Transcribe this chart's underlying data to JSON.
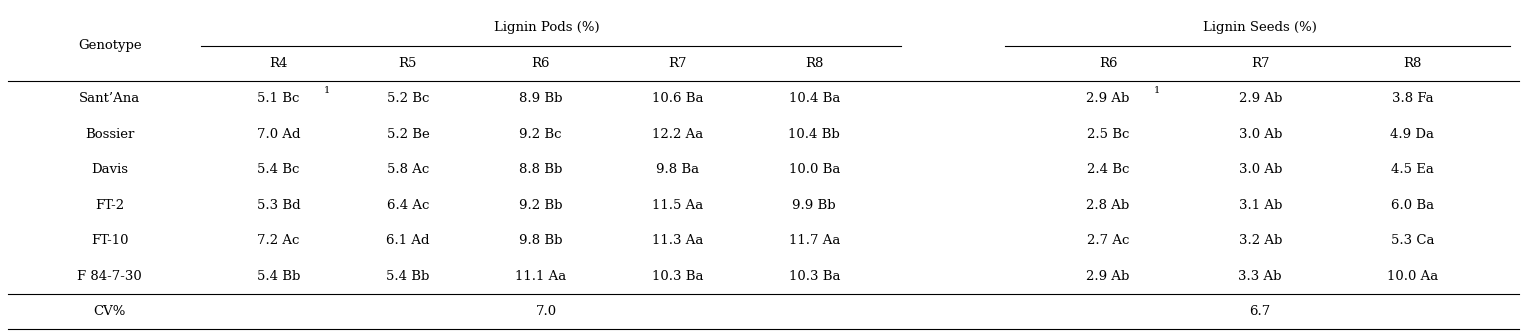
{
  "col_header_pods": [
    "R4",
    "R5",
    "R6",
    "R7",
    "R8"
  ],
  "col_header_seeds": [
    "R6",
    "R7",
    "R8"
  ],
  "genotypes": [
    "Sant’Ana",
    "Bossier",
    "Davis",
    "FT-2",
    "FT-10",
    "F 84-7-30"
  ],
  "pods_data": [
    [
      "5.1 Bc¹",
      "5.2 Bc",
      "8.9 Bb",
      "10.6 Ba",
      "10.4 Ba"
    ],
    [
      "7.0 Ad",
      "5.2 Be",
      "9.2 Bc",
      "12.2 Aa",
      "10.4 Bb"
    ],
    [
      "5.4 Bc",
      "5.8 Ac",
      "8.8 Bb",
      "9.8 Ba",
      "10.0 Ba"
    ],
    [
      "5.3 Bd",
      "6.4 Ac",
      "9.2 Bb",
      "11.5 Aa",
      "9.9 Bb"
    ],
    [
      "7.2 Ac",
      "6.1 Ad",
      "9.8 Bb",
      "11.3 Aa",
      "11.7 Aa"
    ],
    [
      "5.4 Bb",
      "5.4 Bb",
      "11.1 Aa",
      "10.3 Ba",
      "10.3 Ba"
    ]
  ],
  "seeds_data": [
    [
      "2.9 Ab¹",
      "2.9 Ab",
      "3.8 Fa"
    ],
    [
      "2.5 Bc",
      "3.0 Ab",
      "4.9 Da"
    ],
    [
      "2.4 Bc",
      "3.0 Ab",
      "4.5 Ea"
    ],
    [
      "2.8 Ab",
      "3.1 Ab",
      "6.0 Ba"
    ],
    [
      "2.7 Ac",
      "3.2 Ab",
      "5.3 Ca"
    ],
    [
      "2.9 Ab",
      "3.3 Ab",
      "10.0 Aa"
    ]
  ],
  "cv_pods": "7.0",
  "cv_seeds": "6.7",
  "bg_color": "#ffffff",
  "text_color": "#000000",
  "font_size": 9.5,
  "superscript_font_size": 7
}
